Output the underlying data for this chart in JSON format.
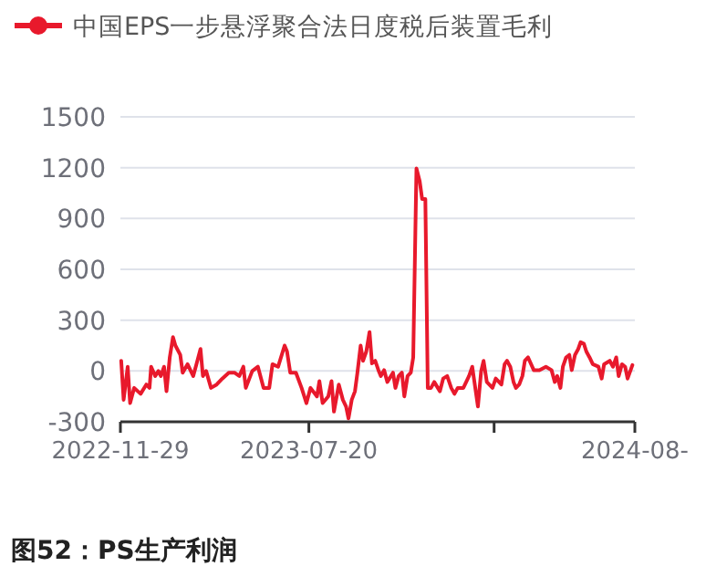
{
  "chart_data": {
    "type": "line",
    "legend": "top",
    "grid": "y",
    "line_style": "solid",
    "annotations": [
      "图52：PS生产利润"
    ],
    "xlim": [
      "2022-11-29",
      "2024-08-26"
    ],
    "xticks": [
      {
        "value": "2022-11-29",
        "label": "2022-11-29"
      },
      {
        "value": "2023-07-20",
        "label": "2023-07-20"
      },
      {
        "value": "2024-03-05",
        "label": null
      },
      {
        "value": "2024-08-26",
        "label": "2024-08-"
      }
    ],
    "ylim": [
      -300,
      1500
    ],
    "yticks": [
      -300,
      0,
      300,
      600,
      900,
      1200,
      1500
    ],
    "x": [
      "2022-11-30",
      "2022-12-03",
      "2022-12-08",
      "2022-12-11",
      "2022-12-16",
      "2022-12-24",
      "2022-12-31",
      "2023-01-04",
      "2023-01-06",
      "2023-01-11",
      "2023-01-15",
      "2023-01-18",
      "2023-01-22",
      "2023-01-25",
      "2023-01-29",
      "2023-02-02",
      "2023-02-05",
      "2023-02-11",
      "2023-02-14",
      "2023-02-20",
      "2023-02-27",
      "2023-03-03",
      "2023-03-08",
      "2023-03-11",
      "2023-03-15",
      "2023-03-21",
      "2023-03-28",
      "2023-04-04",
      "2023-04-12",
      "2023-04-19",
      "2023-04-25",
      "2023-04-30",
      "2023-05-03",
      "2023-05-11",
      "2023-05-18",
      "2023-05-25",
      "2023-06-01",
      "2023-06-05",
      "2023-06-12",
      "2023-06-20",
      "2023-06-23",
      "2023-06-27",
      "2023-07-04",
      "2023-07-11",
      "2023-07-17",
      "2023-07-22",
      "2023-07-30",
      "2023-08-02",
      "2023-08-06",
      "2023-08-13",
      "2023-08-17",
      "2023-08-20",
      "2023-08-26",
      "2023-08-31",
      "2023-09-04",
      "2023-09-07",
      "2023-09-11",
      "2023-09-15",
      "2023-09-18",
      "2023-09-22",
      "2023-09-25",
      "2023-09-29",
      "2023-10-03",
      "2023-10-06",
      "2023-10-10",
      "2023-10-14",
      "2023-10-17",
      "2023-10-21",
      "2023-10-25",
      "2023-11-01",
      "2023-11-04",
      "2023-11-08",
      "2023-11-12",
      "2023-11-15",
      "2023-11-19",
      "2023-11-23",
      "2023-11-26",
      "2023-11-30",
      "2023-12-04",
      "2023-12-07",
      "2023-12-11",
      "2023-12-14",
      "2023-12-18",
      "2023-12-22",
      "2023-12-29",
      "2024-01-02",
      "2024-01-07",
      "2024-01-12",
      "2024-01-16",
      "2024-01-20",
      "2024-01-27",
      "2024-02-03",
      "2024-02-07",
      "2024-02-14",
      "2024-02-18",
      "2024-02-21",
      "2024-02-25",
      "2024-03-03",
      "2024-03-07",
      "2024-03-14",
      "2024-03-18",
      "2024-03-21",
      "2024-03-25",
      "2024-03-29",
      "2024-04-01",
      "2024-04-05",
      "2024-04-09",
      "2024-04-12",
      "2024-04-16",
      "2024-04-23",
      "2024-04-30",
      "2024-05-08",
      "2024-05-15",
      "2024-05-19",
      "2024-05-22",
      "2024-05-26",
      "2024-05-29",
      "2024-06-02",
      "2024-06-06",
      "2024-06-09",
      "2024-06-13",
      "2024-06-17",
      "2024-06-20",
      "2024-06-24",
      "2024-06-27",
      "2024-07-01",
      "2024-07-05",
      "2024-07-12",
      "2024-07-16",
      "2024-07-19",
      "2024-07-26",
      "2024-07-30",
      "2024-08-03",
      "2024-08-06",
      "2024-08-10",
      "2024-08-14",
      "2024-08-17",
      "2024-08-23"
    ],
    "series": [
      {
        "name": "中国EPS一步悬浮聚合法日度税后装置毛利",
        "color": "#e8192c",
        "values": [
          60,
          -170,
          25,
          -190,
          -100,
          -135,
          -80,
          -100,
          25,
          -30,
          0,
          -30,
          25,
          -120,
          80,
          200,
          150,
          95,
          -10,
          40,
          -30,
          40,
          130,
          -30,
          0,
          -100,
          -80,
          -45,
          -10,
          -10,
          -30,
          25,
          -100,
          0,
          25,
          -100,
          -100,
          40,
          25,
          150,
          115,
          -10,
          -10,
          -100,
          -190,
          -100,
          -150,
          -60,
          -190,
          -150,
          -60,
          -240,
          -80,
          -170,
          -210,
          -280,
          -170,
          -120,
          -10,
          150,
          60,
          115,
          230,
          45,
          60,
          5,
          -30,
          5,
          -65,
          -10,
          -100,
          -30,
          -10,
          -150,
          -30,
          -10,
          80,
          1195,
          1120,
          1015,
          1015,
          -100,
          -100,
          -65,
          -120,
          -45,
          -30,
          -100,
          -135,
          -100,
          -100,
          -30,
          25,
          -210,
          0,
          60,
          -65,
          -100,
          -45,
          -80,
          40,
          60,
          25,
          -65,
          -100,
          -80,
          -30,
          60,
          80,
          5,
          5,
          25,
          5,
          -65,
          -30,
          -100,
          25,
          80,
          95,
          5,
          95,
          130,
          170,
          160,
          115,
          80,
          40,
          25,
          -45,
          40,
          60,
          25,
          80,
          -30,
          40,
          25,
          -45,
          35
        ]
      }
    ]
  }
}
